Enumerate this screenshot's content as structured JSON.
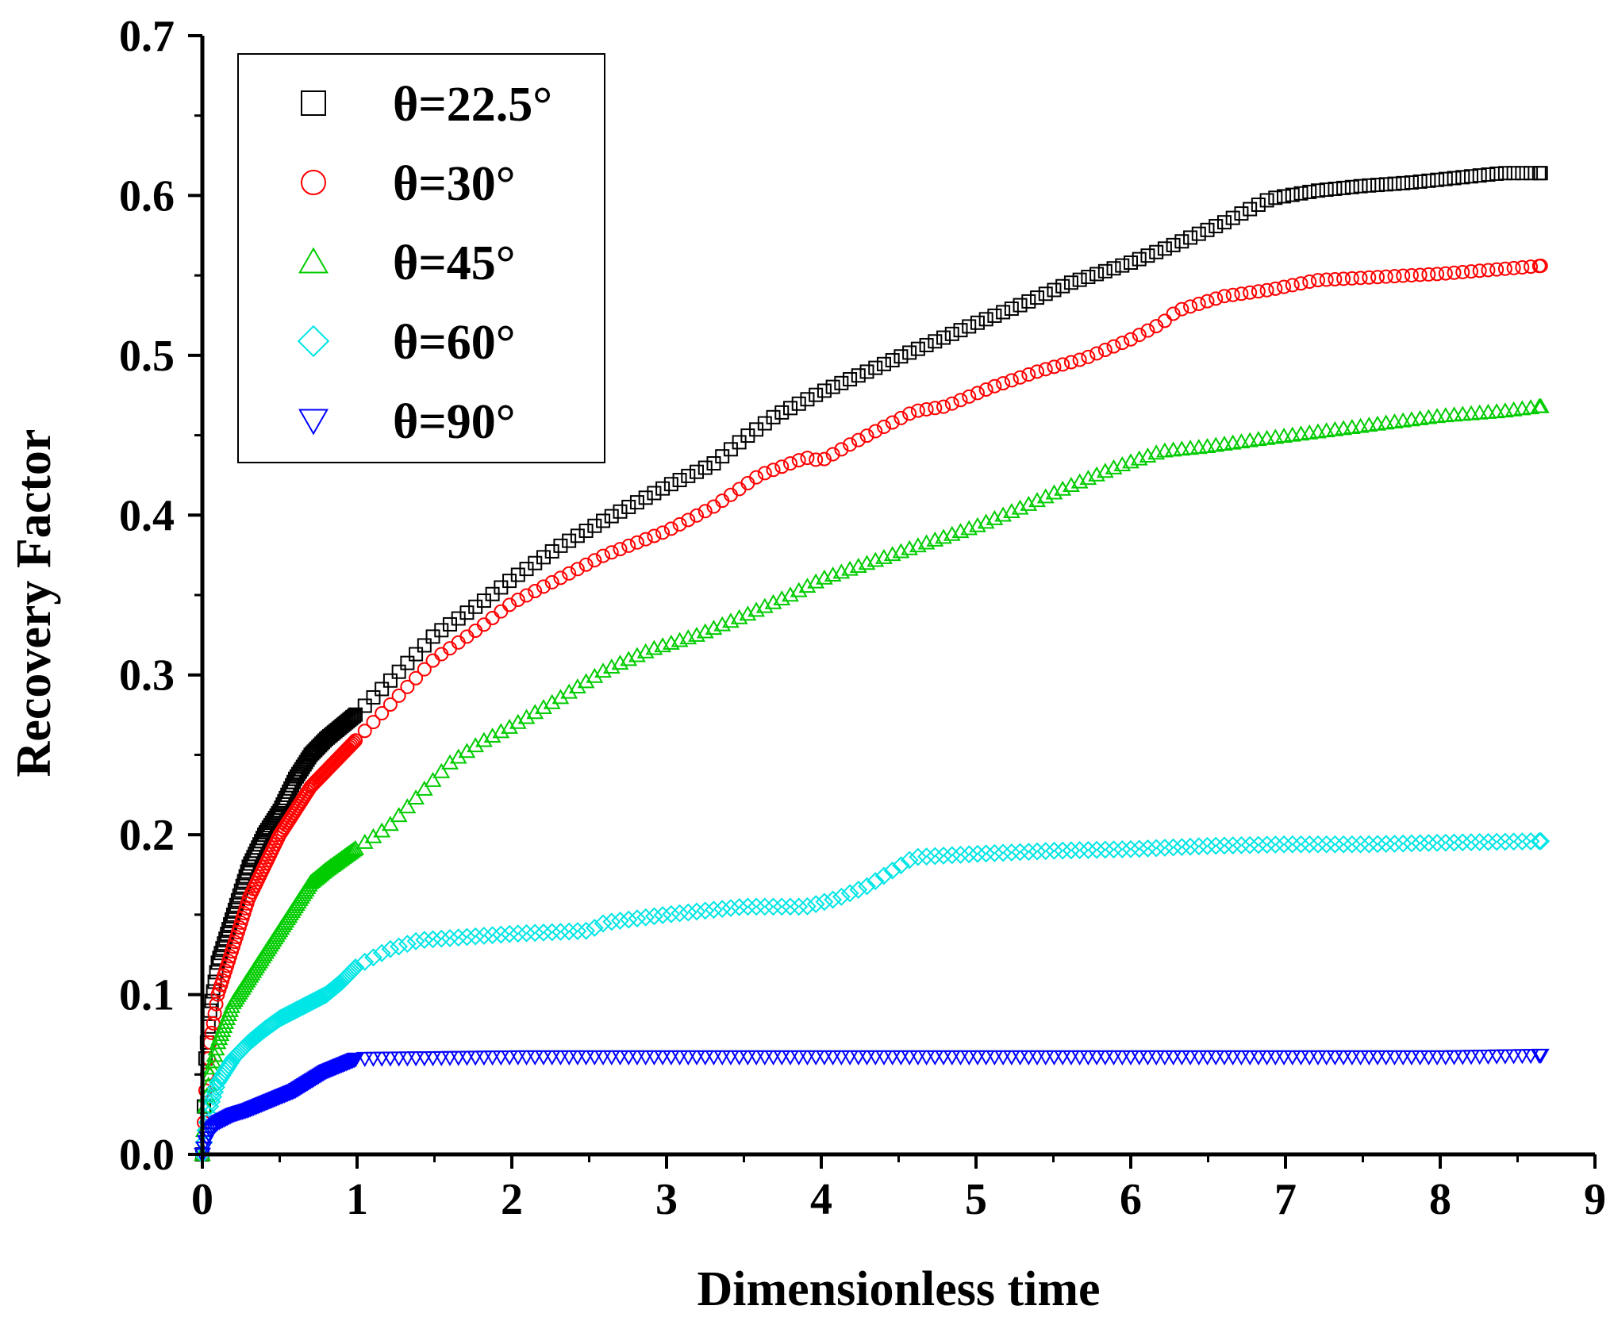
{
  "chart_data": {
    "type": "scatter",
    "title": "",
    "xlabel": "Dimensionless time",
    "ylabel": "Recovery Factor",
    "xlim": [
      0,
      9
    ],
    "ylim": [
      0,
      0.7
    ],
    "xticks": [
      0,
      1,
      2,
      3,
      4,
      5,
      6,
      7,
      8,
      9
    ],
    "xtick_labels": [
      "0",
      "1",
      "2",
      "3",
      "4",
      "5",
      "6",
      "7",
      "8",
      "9"
    ],
    "yticks": [
      0.0,
      0.1,
      0.2,
      0.3,
      0.4,
      0.5,
      0.6,
      0.7
    ],
    "ytick_labels": [
      "0.0",
      "0.1",
      "0.2",
      "0.3",
      "0.4",
      "0.5",
      "0.6",
      "0.7"
    ],
    "grid": false,
    "legend_position": "top-left",
    "series": [
      {
        "name": "θ=22.5°",
        "marker": "square",
        "color": "#000000",
        "x": [
          0,
          0.02,
          0.05,
          0.1,
          0.2,
          0.3,
          0.4,
          0.5,
          0.6,
          0.7,
          0.8,
          0.9,
          1.0,
          1.2,
          1.5,
          1.8,
          2.0,
          2.3,
          2.6,
          3.0,
          3.3,
          3.5,
          3.7,
          4.0,
          4.3,
          4.6,
          5.0,
          5.3,
          5.6,
          6.0,
          6.3,
          6.6,
          6.9,
          7.2,
          7.5,
          7.8,
          8.1,
          8.4,
          8.65
        ],
        "y": [
          0,
          0.06,
          0.09,
          0.12,
          0.15,
          0.18,
          0.2,
          0.215,
          0.235,
          0.25,
          0.26,
          0.268,
          0.276,
          0.295,
          0.325,
          0.345,
          0.36,
          0.38,
          0.397,
          0.418,
          0.432,
          0.448,
          0.462,
          0.477,
          0.49,
          0.503,
          0.52,
          0.532,
          0.545,
          0.558,
          0.57,
          0.583,
          0.598,
          0.603,
          0.606,
          0.608,
          0.611,
          0.614,
          0.614
        ]
      },
      {
        "name": "θ=30°",
        "marker": "circle",
        "color": "#ff0000",
        "x": [
          0,
          0.02,
          0.05,
          0.1,
          0.2,
          0.3,
          0.4,
          0.5,
          0.6,
          0.7,
          0.8,
          0.9,
          1.0,
          1.2,
          1.5,
          1.8,
          2.0,
          2.3,
          2.6,
          3.0,
          3.3,
          3.6,
          3.9,
          4.0,
          4.2,
          4.5,
          4.6,
          4.8,
          5.1,
          5.4,
          5.7,
          6.0,
          6.2,
          6.3,
          6.6,
          6.9,
          7.2,
          7.6,
          8.0,
          8.4,
          8.65
        ],
        "y": [
          0,
          0.04,
          0.07,
          0.1,
          0.13,
          0.16,
          0.18,
          0.2,
          0.215,
          0.23,
          0.24,
          0.25,
          0.26,
          0.28,
          0.31,
          0.33,
          0.345,
          0.36,
          0.375,
          0.39,
          0.405,
          0.425,
          0.436,
          0.434,
          0.445,
          0.46,
          0.465,
          0.468,
          0.48,
          0.49,
          0.498,
          0.51,
          0.52,
          0.528,
          0.537,
          0.541,
          0.547,
          0.549,
          0.551,
          0.554,
          0.556
        ]
      },
      {
        "name": "θ=45°",
        "marker": "triangle-up",
        "color": "#00cc00",
        "x": [
          0,
          0.02,
          0.05,
          0.1,
          0.2,
          0.3,
          0.4,
          0.5,
          0.6,
          0.7,
          0.8,
          0.9,
          1.0,
          1.2,
          1.4,
          1.6,
          1.8,
          2.0,
          2.3,
          2.6,
          2.9,
          3.2,
          3.5,
          3.8,
          4.0,
          4.3,
          4.6,
          5.0,
          5.3,
          5.6,
          5.9,
          6.2,
          6.5,
          6.8,
          7.2,
          7.6,
          8.0,
          8.4,
          8.65
        ],
        "y": [
          0,
          0.03,
          0.05,
          0.07,
          0.095,
          0.11,
          0.125,
          0.14,
          0.155,
          0.17,
          0.178,
          0.185,
          0.192,
          0.205,
          0.225,
          0.245,
          0.258,
          0.268,
          0.285,
          0.303,
          0.316,
          0.325,
          0.337,
          0.35,
          0.36,
          0.37,
          0.38,
          0.393,
          0.405,
          0.418,
          0.43,
          0.44,
          0.443,
          0.447,
          0.452,
          0.457,
          0.462,
          0.465,
          0.468
        ]
      },
      {
        "name": "θ=60°",
        "marker": "diamond",
        "color": "#00e5e5",
        "x": [
          0,
          0.02,
          0.05,
          0.1,
          0.2,
          0.3,
          0.4,
          0.5,
          0.6,
          0.7,
          0.8,
          0.9,
          1.0,
          1.2,
          1.4,
          1.7,
          2.0,
          2.5,
          2.6,
          3.0,
          3.5,
          3.9,
          4.1,
          4.3,
          4.5,
          4.6,
          4.8,
          5.0,
          5.5,
          6.0,
          6.5,
          7.0,
          7.5,
          8.0,
          8.65
        ],
        "y": [
          0,
          0.015,
          0.03,
          0.045,
          0.06,
          0.07,
          0.078,
          0.085,
          0.09,
          0.095,
          0.1,
          0.108,
          0.118,
          0.128,
          0.134,
          0.136,
          0.138,
          0.14,
          0.145,
          0.15,
          0.155,
          0.155,
          0.16,
          0.168,
          0.18,
          0.186,
          0.187,
          0.188,
          0.19,
          0.191,
          0.193,
          0.194,
          0.194,
          0.195,
          0.196
        ]
      },
      {
        "name": "θ=90°",
        "marker": "triangle-down",
        "color": "#0000ff",
        "x": [
          0,
          0.02,
          0.05,
          0.1,
          0.2,
          0.3,
          0.4,
          0.5,
          0.6,
          0.7,
          0.8,
          0.9,
          0.95,
          1.0,
          2.0,
          3.0,
          4.0,
          5.0,
          6.0,
          7.0,
          8.0,
          8.65
        ],
        "y": [
          0,
          0.008,
          0.015,
          0.02,
          0.025,
          0.028,
          0.032,
          0.036,
          0.04,
          0.046,
          0.052,
          0.056,
          0.058,
          0.06,
          0.061,
          0.061,
          0.061,
          0.061,
          0.061,
          0.061,
          0.061,
          0.062
        ]
      }
    ]
  }
}
